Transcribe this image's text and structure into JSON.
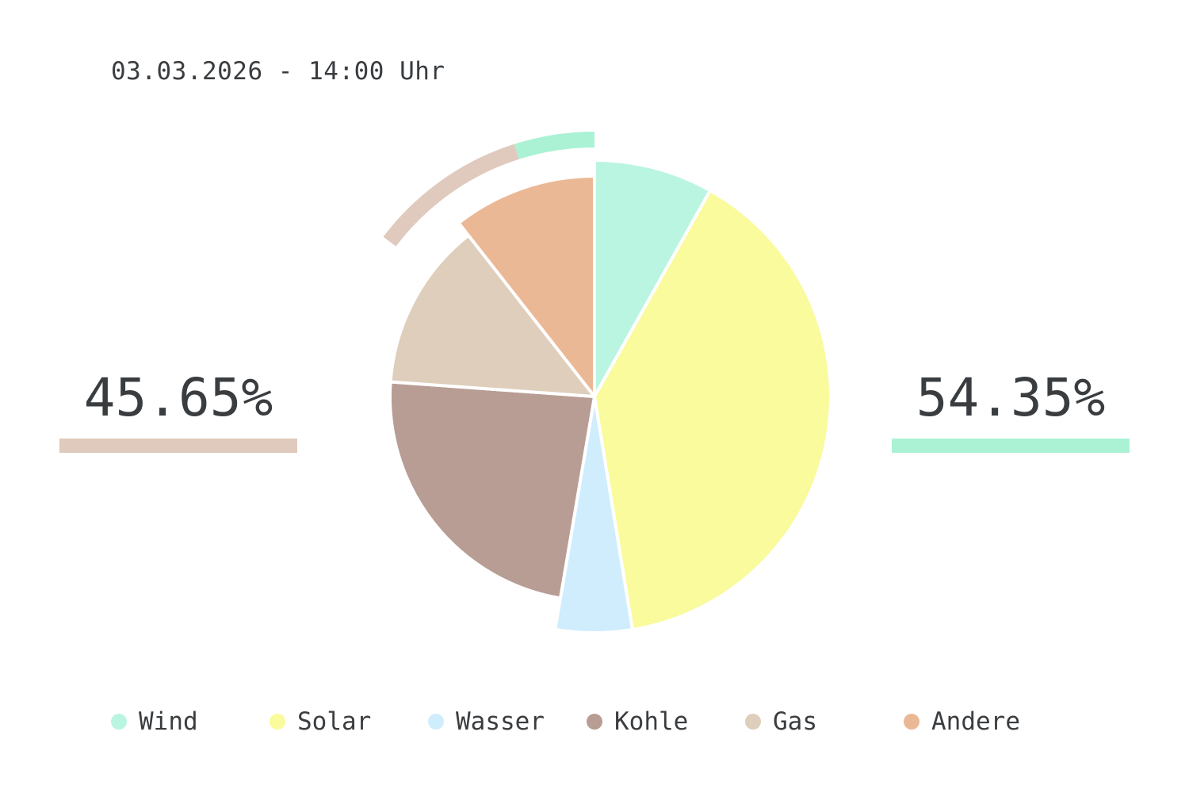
{
  "header": {
    "timestamp": "03.03.2026 - 14:00 Uhr"
  },
  "summary": {
    "left": {
      "value": "45.65%",
      "color": "#e0cabd"
    },
    "right": {
      "value": "54.35%",
      "color": "#abf2d5"
    }
  },
  "chart_data": {
    "type": "pie",
    "categories": [
      "Wind",
      "Solar",
      "Wasser",
      "Kohle",
      "Gas",
      "Andere"
    ],
    "values": [
      8.4,
      40.5,
      5.4,
      24.2,
      13.7,
      10.9
    ],
    "colors": [
      "#b9f5e0",
      "#f9fb9c",
      "#d0edfd",
      "#b79d94",
      "#decebb",
      "#ebb895"
    ],
    "legend": "bottom",
    "outer_arc": [
      {
        "value": 4.9,
        "color": "#abf2d5"
      },
      {
        "value": 9.8,
        "color": "#e0cabd"
      }
    ]
  }
}
